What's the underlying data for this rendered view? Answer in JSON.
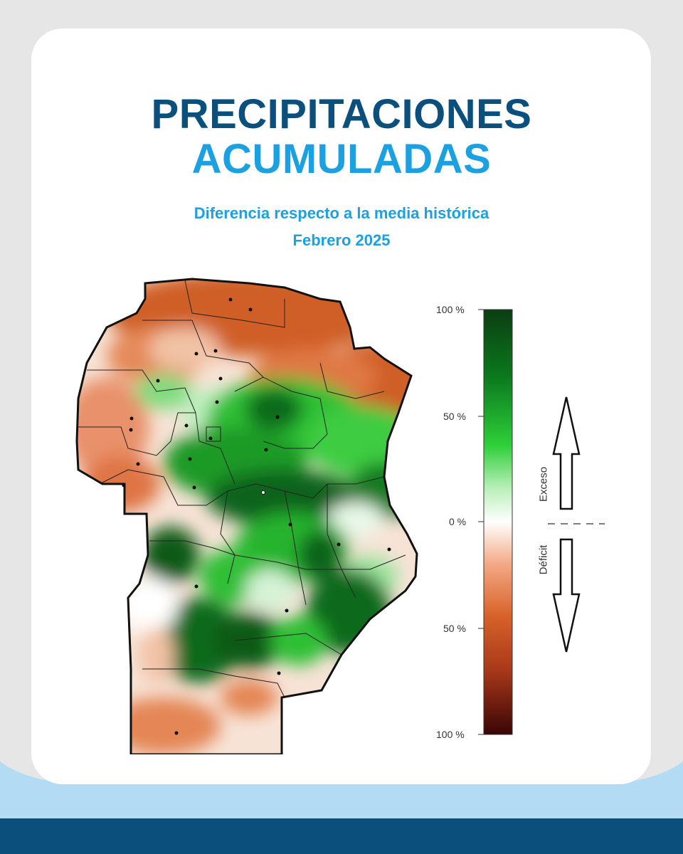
{
  "title": {
    "line1": "PRECIPITACIONES",
    "line2": "ACUMULADAS"
  },
  "subtitle": {
    "line1": "Diferencia respecto a la media histórica",
    "line2": "Febrero 2025"
  },
  "legend": {
    "ticks": [
      "100 %",
      "50 %",
      "0 %",
      "50 %",
      "100 %"
    ],
    "exceso": "Exceso",
    "deficit": "Déficit",
    "colors": [
      "#0b3d12",
      "#0b7a1e",
      "#2fcf3a",
      "#ffffff",
      "#f3a884",
      "#d8622a",
      "#a7381a",
      "#3a0505"
    ]
  },
  "map": {
    "colors": {
      "deficit_light": "#f5c4aa",
      "deficit": "#e07845",
      "deficit_strong": "#c5531f",
      "excess_light": "#9fe59f",
      "excess": "#34c83b",
      "excess_strong": "#0d6a1c"
    }
  },
  "theme": {
    "background": "#e6e6e6",
    "card": "#ffffff",
    "dark_blue": "#0b4f7c",
    "light_blue": "#1ba0e2",
    "wave": "#b3dbf3",
    "band": "#0b4f7c"
  }
}
